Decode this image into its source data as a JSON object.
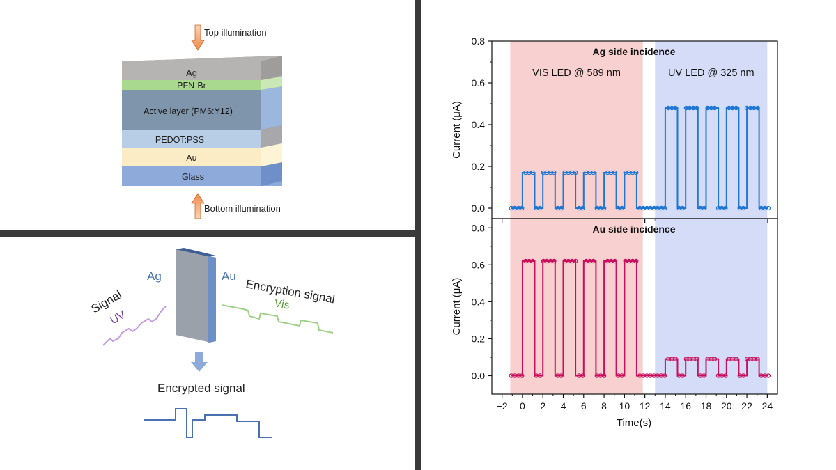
{
  "stack": {
    "top_label": "Top illumination",
    "bottom_label": "Bottom illumination",
    "layers": [
      {
        "name": "Ag",
        "color": "#b6b3b3"
      },
      {
        "name": "PFN-Br",
        "color": "#a9d88f"
      },
      {
        "name": "Active layer (PM6:Y12)",
        "color": "#7f95ab"
      },
      {
        "name": "PEDOT:PSS",
        "color": "#b8cde6"
      },
      {
        "name": "Au",
        "color": "#fbecc5"
      },
      {
        "name": "Glass",
        "color": "#8eaadb"
      }
    ]
  },
  "encryption": {
    "ag_label": "Ag",
    "au_label": "Au",
    "signal_label": "Signal",
    "uv_label": "UV",
    "enc_signal_label": "Encryption signal",
    "vis_label": "Vis",
    "encrypted_label": "Encrypted signal"
  },
  "chart_data": [
    {
      "type": "line",
      "title": "Ag side incidence",
      "xlabel": "Time(s)",
      "ylabel": "Current (μA)",
      "xlim": [
        -3,
        25
      ],
      "ylim": [
        -0.05,
        0.8
      ],
      "xticks": [
        -2,
        0,
        2,
        4,
        6,
        8,
        10,
        12,
        14,
        16,
        18,
        20,
        22,
        24
      ],
      "yticks": [
        0.0,
        0.2,
        0.4,
        0.6,
        0.8
      ],
      "series_color": "#1f77d4",
      "regions": [
        {
          "label": "VIS LED @ 589 nm",
          "x": [
            -1.2,
            11.8
          ],
          "color": "#f9d0d0"
        },
        {
          "label": "UV LED @ 325 nm",
          "x": [
            13.0,
            24.0
          ],
          "color": "#d5dcf7"
        }
      ],
      "baseline": 0.0,
      "pulses": [
        {
          "start": 0.0,
          "end": 1.2,
          "value": 0.17
        },
        {
          "start": 2.0,
          "end": 3.2,
          "value": 0.17
        },
        {
          "start": 4.0,
          "end": 5.2,
          "value": 0.17
        },
        {
          "start": 6.0,
          "end": 7.2,
          "value": 0.17
        },
        {
          "start": 8.0,
          "end": 9.2,
          "value": 0.17
        },
        {
          "start": 10.0,
          "end": 11.2,
          "value": 0.17
        },
        {
          "start": 14.0,
          "end": 15.2,
          "value": 0.48
        },
        {
          "start": 16.0,
          "end": 17.2,
          "value": 0.48
        },
        {
          "start": 18.0,
          "end": 19.2,
          "value": 0.48
        },
        {
          "start": 20.0,
          "end": 21.2,
          "value": 0.48
        },
        {
          "start": 22.0,
          "end": 23.2,
          "value": 0.48
        }
      ]
    },
    {
      "type": "line",
      "title": "Au side incidence",
      "xlabel": "Time(s)",
      "ylabel": "Current (μA)",
      "xlim": [
        -3,
        25
      ],
      "ylim": [
        -0.1,
        0.85
      ],
      "xticks": [
        -2,
        0,
        2,
        4,
        6,
        8,
        10,
        12,
        14,
        16,
        18,
        20,
        22,
        24
      ],
      "yticks": [
        0.0,
        0.2,
        0.4,
        0.6,
        0.8
      ],
      "series_color": "#c8105e",
      "regions": [
        {
          "label": "",
          "x": [
            -1.2,
            11.8
          ],
          "color": "#f9d0d0"
        },
        {
          "label": "",
          "x": [
            13.0,
            24.0
          ],
          "color": "#d5dcf7"
        }
      ],
      "baseline": 0.0,
      "pulses": [
        {
          "start": 0.0,
          "end": 1.2,
          "value": 0.62
        },
        {
          "start": 2.0,
          "end": 3.2,
          "value": 0.62
        },
        {
          "start": 4.0,
          "end": 5.2,
          "value": 0.62
        },
        {
          "start": 6.0,
          "end": 7.2,
          "value": 0.62
        },
        {
          "start": 8.0,
          "end": 9.2,
          "value": 0.62
        },
        {
          "start": 10.0,
          "end": 11.2,
          "value": 0.62
        },
        {
          "start": 14.0,
          "end": 15.2,
          "value": 0.09
        },
        {
          "start": 16.0,
          "end": 17.2,
          "value": 0.09
        },
        {
          "start": 18.0,
          "end": 19.2,
          "value": 0.09
        },
        {
          "start": 20.0,
          "end": 21.2,
          "value": 0.09
        },
        {
          "start": 22.0,
          "end": 23.2,
          "value": 0.09
        }
      ]
    }
  ]
}
